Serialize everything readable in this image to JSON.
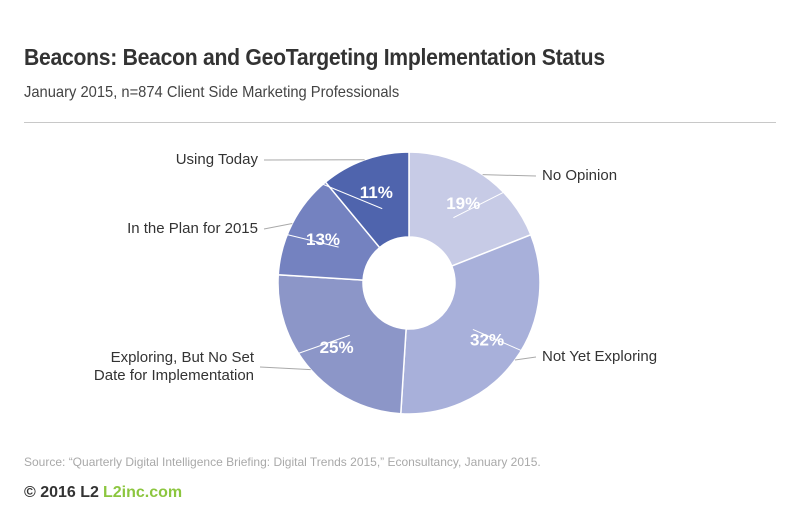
{
  "header": {
    "title": "Beacons: Beacon and GeoTargeting Implementation Status",
    "subtitle": "January 2015, n=874 Client Side Marketing Professionals"
  },
  "chart_data": {
    "type": "pie",
    "variant": "donut",
    "title": "Beacons: Beacon and GeoTargeting Implementation Status",
    "subtitle": "January 2015, n=874 Client Side Marketing Professionals",
    "slices": [
      {
        "label": "No Opinion",
        "value": 19,
        "display": "19%",
        "color": "#c7cbe6"
      },
      {
        "label": "Not Yet Exploring",
        "value": 32,
        "display": "32%",
        "color": "#a8b0da"
      },
      {
        "label": "Exploring, But No Set Date for Implementation",
        "label_lines": [
          "Exploring, But No Set",
          "Date for Implementation"
        ],
        "value": 25,
        "display": "25%",
        "color": "#8c96c8"
      },
      {
        "label": "In the Plan for 2015",
        "value": 13,
        "display": "13%",
        "color": "#7482c0"
      },
      {
        "label": "Using Today",
        "value": 11,
        "display": "11%",
        "color": "#4f64ad"
      }
    ],
    "start_angle_deg": 0,
    "direction": "clockwise"
  },
  "footer": {
    "source": "Source: “Quarterly Digital Intelligence Briefing: Digital Trends 2015,” Econsultancy, January 2015.",
    "copyright": "© 2016 L2",
    "site": "L2inc.com"
  }
}
